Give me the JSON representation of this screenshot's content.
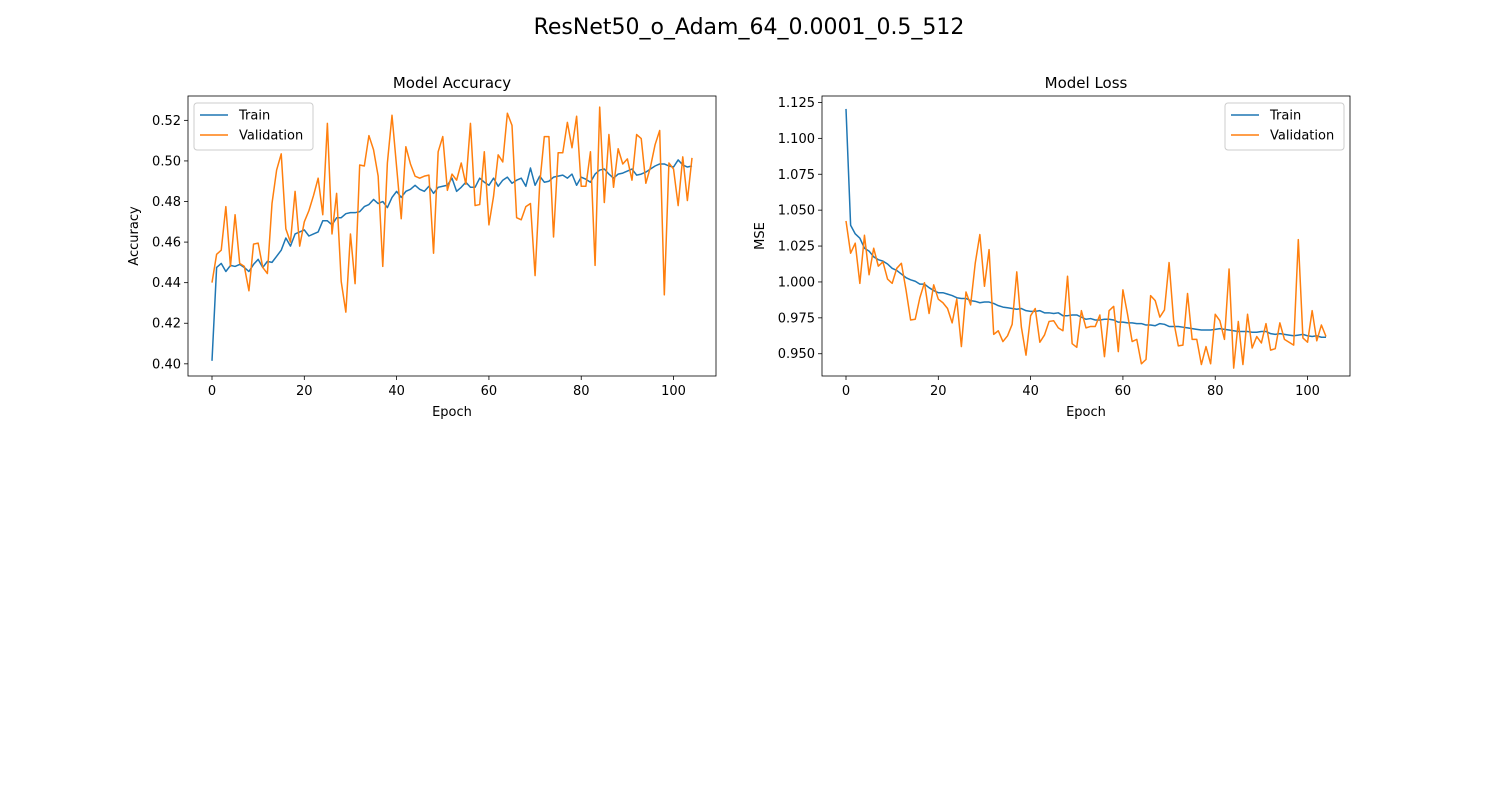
{
  "figure": {
    "title": "ResNet50_o_Adam_64_0.0001_0.5_512"
  },
  "chart_data": [
    {
      "type": "line",
      "title": "Model Accuracy",
      "xlabel": "Epoch",
      "ylabel": "Accuracy",
      "xlim": [
        -5.2,
        109.2
      ],
      "ylim": [
        0.394,
        0.532
      ],
      "xticks": [
        0,
        20,
        40,
        60,
        80,
        100
      ],
      "yticks": [
        0.4,
        0.42,
        0.44,
        0.46,
        0.48,
        0.5,
        0.52
      ],
      "ytick_labels": [
        "0.40",
        "0.42",
        "0.44",
        "0.46",
        "0.48",
        "0.50",
        "0.52"
      ],
      "grid": false,
      "legend": "upper-left",
      "series": [
        {
          "name": "Train",
          "color": "#1f77b4",
          "values": [
            0.4015,
            0.4475,
            0.4495,
            0.4455,
            0.4485,
            0.448,
            0.449,
            0.4475,
            0.4455,
            0.449,
            0.4515,
            0.4475,
            0.4505,
            0.45,
            0.453,
            0.456,
            0.462,
            0.458,
            0.464,
            0.465,
            0.466,
            0.463,
            0.464,
            0.465,
            0.4705,
            0.4705,
            0.4685,
            0.472,
            0.472,
            0.474,
            0.4745,
            0.4745,
            0.475,
            0.4775,
            0.4785,
            0.481,
            0.479,
            0.48,
            0.477,
            0.482,
            0.485,
            0.482,
            0.485,
            0.486,
            0.488,
            0.486,
            0.485,
            0.4875,
            0.484,
            0.487,
            0.4875,
            0.488,
            0.4915,
            0.485,
            0.487,
            0.4895,
            0.487,
            0.487,
            0.4915,
            0.4895,
            0.488,
            0.4915,
            0.4875,
            0.4905,
            0.492,
            0.489,
            0.4905,
            0.4915,
            0.4875,
            0.4965,
            0.488,
            0.4925,
            0.4895,
            0.49,
            0.492,
            0.4925,
            0.493,
            0.4915,
            0.4935,
            0.488,
            0.492,
            0.491,
            0.4895,
            0.4935,
            0.4955,
            0.496,
            0.4935,
            0.4915,
            0.4935,
            0.494,
            0.495,
            0.496,
            0.493,
            0.4935,
            0.4945,
            0.496,
            0.4975,
            0.4985,
            0.4985,
            0.4975,
            0.497,
            0.5005,
            0.498,
            0.497,
            0.4975
          ]
        },
        {
          "name": "Validation",
          "color": "#ff7f0e",
          "values": [
            0.44,
            0.454,
            0.456,
            0.4775,
            0.448,
            0.4735,
            0.4495,
            0.448,
            0.436,
            0.459,
            0.4595,
            0.4475,
            0.4445,
            0.479,
            0.4955,
            0.5035,
            0.4665,
            0.46,
            0.485,
            0.458,
            0.47,
            0.4755,
            0.483,
            0.4915,
            0.4735,
            0.5185,
            0.464,
            0.484,
            0.4405,
            0.4255,
            0.464,
            0.4395,
            0.498,
            0.4975,
            0.5125,
            0.5055,
            0.4925,
            0.448,
            0.499,
            0.5225,
            0.497,
            0.4715,
            0.507,
            0.4985,
            0.4925,
            0.4915,
            0.4925,
            0.493,
            0.4545,
            0.5045,
            0.512,
            0.4855,
            0.4935,
            0.4905,
            0.499,
            0.4885,
            0.5185,
            0.478,
            0.4785,
            0.5045,
            0.4685,
            0.4825,
            0.503,
            0.4995,
            0.5235,
            0.5175,
            0.472,
            0.471,
            0.4775,
            0.479,
            0.4435,
            0.4885,
            0.512,
            0.512,
            0.4625,
            0.504,
            0.504,
            0.519,
            0.5065,
            0.522,
            0.4875,
            0.4875,
            0.5045,
            0.4485,
            0.5265,
            0.4795,
            0.513,
            0.487,
            0.506,
            0.4985,
            0.501,
            0.4905,
            0.513,
            0.511,
            0.489,
            0.497,
            0.508,
            0.515,
            0.434,
            0.499,
            0.496,
            0.478,
            0.502,
            0.4805,
            0.5015
          ]
        }
      ]
    },
    {
      "type": "line",
      "title": "Model Loss",
      "xlabel": "Epoch",
      "ylabel": "MSE",
      "xlim": [
        -5.2,
        109.2
      ],
      "ylim": [
        0.9345,
        1.1295
      ],
      "xticks": [
        0,
        20,
        40,
        60,
        80,
        100
      ],
      "yticks": [
        0.95,
        0.975,
        1.0,
        1.025,
        1.05,
        1.075,
        1.1,
        1.125
      ],
      "ytick_labels": [
        "0.950",
        "0.975",
        "1.000",
        "1.025",
        "1.050",
        "1.075",
        "1.100",
        "1.125"
      ],
      "grid": false,
      "legend": "upper-right",
      "series": [
        {
          "name": "Train",
          "color": "#1f77b4",
          "values": [
            1.1205,
            1.0395,
            1.0335,
            1.0305,
            1.0235,
            1.0215,
            1.0175,
            1.0155,
            1.0145,
            1.0125,
            1.0095,
            1.008,
            1.0055,
            1.003,
            1.0015,
            1.0005,
            0.9985,
            0.9985,
            0.996,
            0.994,
            0.9925,
            0.9925,
            0.9915,
            0.9905,
            0.989,
            0.9885,
            0.9885,
            0.987,
            0.9865,
            0.9855,
            0.986,
            0.986,
            0.985,
            0.9835,
            0.9825,
            0.982,
            0.9815,
            0.981,
            0.9815,
            0.98,
            0.9795,
            0.9795,
            0.98,
            0.9785,
            0.9785,
            0.978,
            0.9785,
            0.9765,
            0.9765,
            0.977,
            0.977,
            0.9755,
            0.974,
            0.9745,
            0.9735,
            0.9735,
            0.974,
            0.974,
            0.9735,
            0.972,
            0.972,
            0.9715,
            0.9715,
            0.971,
            0.971,
            0.97,
            0.97,
            0.9695,
            0.971,
            0.9705,
            0.969,
            0.969,
            0.969,
            0.9685,
            0.968,
            0.9675,
            0.967,
            0.9665,
            0.9665,
            0.9665,
            0.967,
            0.9675,
            0.967,
            0.9665,
            0.966,
            0.9655,
            0.9655,
            0.9655,
            0.965,
            0.965,
            0.9655,
            0.9655,
            0.964,
            0.9635,
            0.964,
            0.9635,
            0.963,
            0.9625,
            0.963,
            0.9635,
            0.9625,
            0.962,
            0.9625,
            0.9615,
            0.9615
          ]
        },
        {
          "name": "Validation",
          "color": "#ff7f0e",
          "values": [
            1.0425,
            1.02,
            1.027,
            0.999,
            1.0325,
            1.005,
            1.0235,
            1.011,
            1.014,
            1.002,
            0.999,
            1.0095,
            1.013,
            0.9945,
            0.9735,
            0.974,
            0.989,
            0.9995,
            0.978,
            0.998,
            0.988,
            0.9855,
            0.9815,
            0.9715,
            0.988,
            0.955,
            0.993,
            0.984,
            1.013,
            1.033,
            0.997,
            1.0225,
            0.9635,
            0.966,
            0.9585,
            0.9625,
            0.9705,
            1.007,
            0.9685,
            0.949,
            0.9765,
            0.9815,
            0.958,
            0.963,
            0.9725,
            0.973,
            0.968,
            0.966,
            1.004,
            0.957,
            0.9545,
            0.98,
            0.968,
            0.969,
            0.969,
            0.977,
            0.948,
            0.98,
            0.983,
            0.9515,
            0.9945,
            0.9775,
            0.9585,
            0.96,
            0.943,
            0.946,
            0.9905,
            0.987,
            0.9755,
            0.9805,
            1.0135,
            0.9725,
            0.9555,
            0.956,
            0.992,
            0.96,
            0.96,
            0.9425,
            0.955,
            0.943,
            0.9775,
            0.973,
            0.96,
            1.009,
            0.94,
            0.9725,
            0.9425,
            0.9775,
            0.954,
            0.962,
            0.9575,
            0.971,
            0.9525,
            0.9535,
            0.9715,
            0.96,
            0.958,
            0.956,
            1.0295,
            0.961,
            0.958,
            0.98,
            0.959,
            0.97,
            0.962
          ]
        }
      ]
    }
  ]
}
